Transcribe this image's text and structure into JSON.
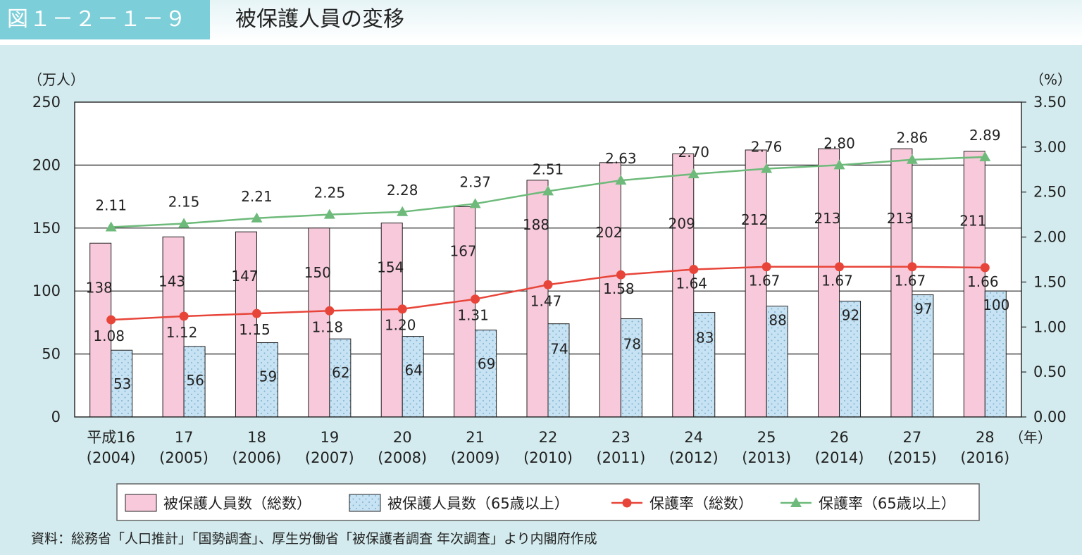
{
  "header": {
    "figure_label": "図１－２－１－９",
    "title": "被保護人員の変移"
  },
  "chart_data": {
    "type": "bar",
    "y_left_unit": "（万人）",
    "y_right_unit": "（%）",
    "x_unit": "（年）",
    "ylim_left": [
      0,
      250
    ],
    "ylim_right": [
      0,
      3.5
    ],
    "y_left_ticks": [
      "0",
      "50",
      "100",
      "150",
      "200",
      "250"
    ],
    "y_right_ticks": [
      "0.00",
      "0.50",
      "1.00",
      "1.50",
      "2.00",
      "2.50",
      "3.00",
      "3.50"
    ],
    "grid": "horizontal",
    "legend_position": "bottom",
    "categories": [
      {
        "era": "平成16",
        "year": "(2004)"
      },
      {
        "era": "17",
        "year": "(2005)"
      },
      {
        "era": "18",
        "year": "(2006)"
      },
      {
        "era": "19",
        "year": "(2007)"
      },
      {
        "era": "20",
        "year": "(2008)"
      },
      {
        "era": "21",
        "year": "(2009)"
      },
      {
        "era": "22",
        "year": "(2010)"
      },
      {
        "era": "23",
        "year": "(2011)"
      },
      {
        "era": "24",
        "year": "(2012)"
      },
      {
        "era": "25",
        "year": "(2013)"
      },
      {
        "era": "26",
        "year": "(2014)"
      },
      {
        "era": "27",
        "year": "(2015)"
      },
      {
        "era": "28",
        "year": "(2016)"
      }
    ],
    "series": [
      {
        "name": "被保護人員数（総数）",
        "kind": "bar",
        "axis": "left",
        "color": "#f7c9da",
        "values": [
          138,
          143,
          147,
          150,
          154,
          167,
          188,
          202,
          209,
          212,
          213,
          213,
          211
        ]
      },
      {
        "name": "被保護人員数（65歳以上）",
        "kind": "bar",
        "axis": "left",
        "color": "#c7e2f3",
        "values": [
          53,
          56,
          59,
          62,
          64,
          69,
          74,
          78,
          83,
          88,
          92,
          97,
          100
        ]
      },
      {
        "name": "保護率（総数）",
        "kind": "line",
        "axis": "right",
        "color": "#e8453a",
        "marker": "circle",
        "values": [
          "1.08",
          "1.12",
          "1.15",
          "1.18",
          "1.20",
          "1.31",
          "1.47",
          "1.58",
          "1.64",
          "1.67",
          "1.67",
          "1.67",
          "1.66"
        ]
      },
      {
        "name": "保護率（65歳以上）",
        "kind": "line",
        "axis": "right",
        "color": "#6dba7a",
        "marker": "triangle",
        "values": [
          "2.11",
          "2.15",
          "2.21",
          "2.25",
          "2.28",
          "2.37",
          "2.51",
          "2.63",
          "2.70",
          "2.76",
          "2.80",
          "2.86",
          "2.89"
        ]
      }
    ]
  },
  "source_note": "資料：総務省「人口推計」「国勢調査」、厚生労働省「被保護者調査 年次調査」より内閣府作成"
}
